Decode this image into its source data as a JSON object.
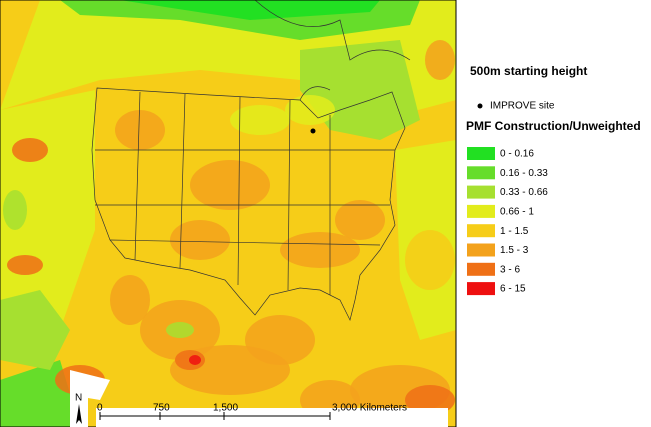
{
  "title": "500m starting height",
  "site_legend": {
    "label": "IMPROVE site"
  },
  "legend": {
    "title": "PMF Construction/Unweighted",
    "items": [
      {
        "label": "0 - 0.16",
        "color": "#22e022"
      },
      {
        "label": "0.16 - 0.33",
        "color": "#66dd2a"
      },
      {
        "label": "0.33 - 0.66",
        "color": "#a6e030"
      },
      {
        "label": "0.66 - 1",
        "color": "#e2ec1c"
      },
      {
        "label": "1 - 1.5",
        "color": "#f6cd18"
      },
      {
        "label": "1.5 - 3",
        "color": "#f3a21c"
      },
      {
        "label": "3 - 6",
        "color": "#ef7016"
      },
      {
        "label": "6 - 15",
        "color": "#ee1010"
      }
    ]
  },
  "scale_bar": {
    "labels": [
      "0",
      "750",
      "1,500",
      "3,000 Kilometers"
    ]
  },
  "north_arrow": "N"
}
